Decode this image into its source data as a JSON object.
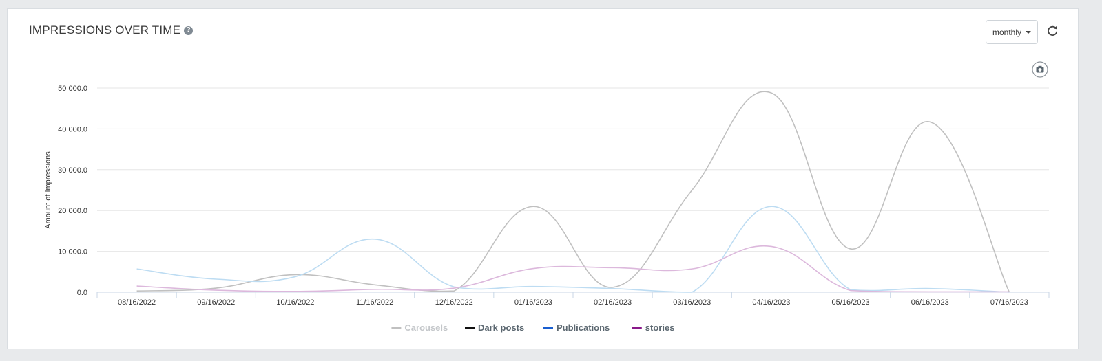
{
  "header": {
    "title": "IMPRESSIONS OVER TIME",
    "help_icon": "question-circle-icon",
    "period_select": {
      "value": "monthly"
    },
    "refresh_icon": "refresh-icon",
    "export_icon": "camera-icon"
  },
  "chart_data": {
    "type": "line",
    "title": "",
    "xlabel": "",
    "ylabel": "Amount of Impressions",
    "ylim": [
      0,
      50000
    ],
    "y_ticks": [
      0,
      10000,
      20000,
      30000,
      40000,
      50000
    ],
    "y_tick_labels": [
      "0.0",
      "10 000.0",
      "20 000.0",
      "30 000.0",
      "40 000.0",
      "50 000.0"
    ],
    "grid": true,
    "legend_position": "bottom-center",
    "categories": [
      "08/16/2022",
      "09/16/2022",
      "10/16/2022",
      "11/16/2022",
      "12/16/2022",
      "01/16/2023",
      "02/16/2023",
      "03/16/2023",
      "04/16/2023",
      "05/16/2023",
      "06/16/2023",
      "07/16/2023"
    ],
    "series": [
      {
        "name": "Carousels",
        "legend_color": "#c0c0c0",
        "line_color": "#c0c0c0",
        "visible": true,
        "legend_dimmed": true,
        "values": [
          300,
          1000,
          4300,
          1800,
          300,
          21000,
          1200,
          25000,
          48800,
          10600,
          41700,
          0
        ]
      },
      {
        "name": "Dark posts",
        "legend_color": "#111111",
        "line_color": "#111111",
        "visible": false,
        "legend_dimmed": false,
        "values": [
          0,
          0,
          0,
          0,
          0,
          0,
          0,
          0,
          0,
          0,
          0,
          0
        ]
      },
      {
        "name": "Publications",
        "legend_color": "#1a5fd0",
        "line_color": "#bddcf2",
        "visible": true,
        "legend_dimmed": false,
        "values": [
          5700,
          3200,
          3800,
          13000,
          1300,
          1400,
          900,
          0,
          21000,
          600,
          900,
          0
        ]
      },
      {
        "name": "stories",
        "legend_color": "#8a1a8a",
        "line_color": "#dcb8dc",
        "visible": true,
        "legend_dimmed": false,
        "values": [
          1500,
          500,
          200,
          700,
          1000,
          5800,
          6000,
          5700,
          11200,
          400,
          100,
          100
        ]
      }
    ]
  }
}
